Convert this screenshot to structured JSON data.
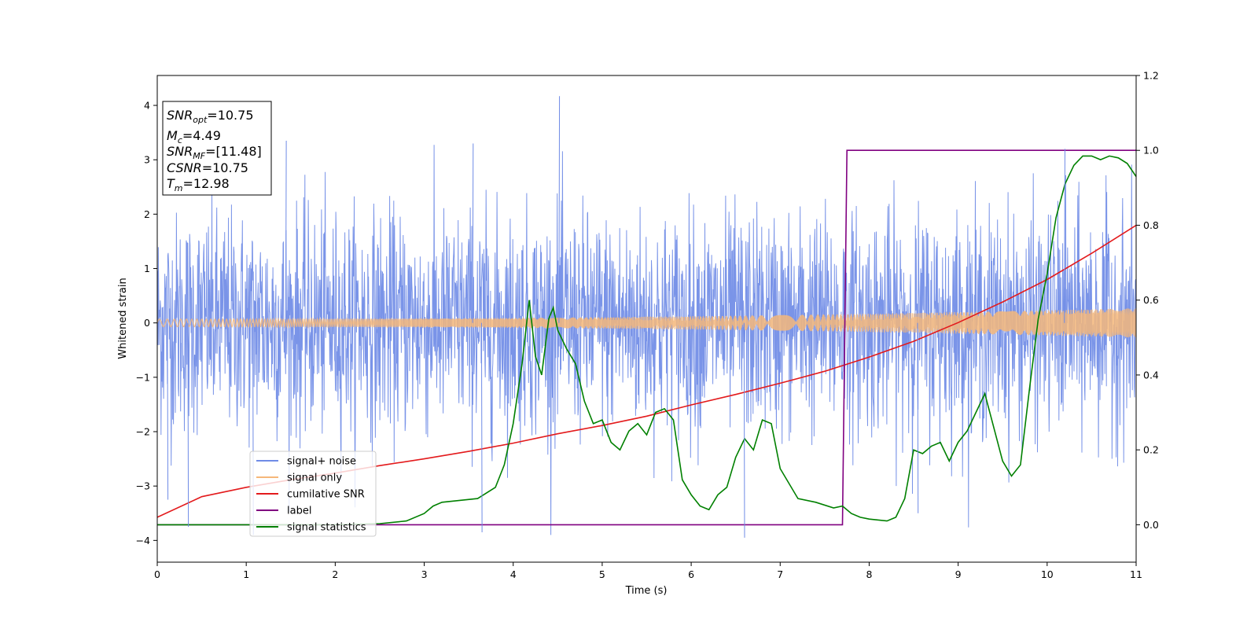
{
  "chart_data": {
    "type": "line",
    "title": "",
    "xlabel": "Time (s)",
    "ylabel": "Whitened strain",
    "y2label": "",
    "xlim": [
      0,
      11
    ],
    "ylim": [
      -4.4,
      4.55
    ],
    "y2lim": [
      -0.1,
      1.2
    ],
    "xticks": [
      0,
      1,
      2,
      3,
      4,
      5,
      6,
      7,
      8,
      9,
      10,
      11
    ],
    "yticks": [
      -4,
      -3,
      -2,
      -1,
      0,
      1,
      2,
      3,
      4
    ],
    "y2ticks": [
      0.0,
      0.2,
      0.4,
      0.6,
      0.8,
      1.0,
      1.2
    ],
    "grid": false,
    "legend_position": "lower-left",
    "info_box": [
      {
        "var": "SNR",
        "sub": "opt",
        "value": "=10.75"
      },
      {
        "var": "M",
        "sub": "c",
        "value": "=4.49"
      },
      {
        "var": "SNR",
        "sub": "MF",
        "value": "=[11.48]"
      },
      {
        "var": "CSNR",
        "sub": "",
        "value": "=10.75"
      },
      {
        "var": "T",
        "sub": "m",
        "value": "=12.98"
      }
    ],
    "series": [
      {
        "name": "signal+ noise",
        "axis": "left",
        "color": "#6f8be6",
        "kind": "noise-band",
        "noise_std": 1.0,
        "typical_range": [
          -2.5,
          2.5
        ],
        "peak_max": 4.17,
        "peak_min": -3.95
      },
      {
        "name": "signal only",
        "axis": "left",
        "color": "#f5b77a",
        "kind": "chirp",
        "amplitude_start": 0.07,
        "amplitude_end": 0.27
      },
      {
        "name": "cumilative SNR",
        "axis": "right",
        "color": "#e31a1c",
        "x": [
          0,
          0.5,
          1,
          1.5,
          2,
          2.5,
          3,
          3.5,
          4,
          4.5,
          5,
          5.5,
          6,
          6.5,
          7,
          7.5,
          8,
          8.5,
          9,
          9.5,
          10,
          10.5,
          11
        ],
        "y": [
          0.02,
          0.075,
          0.1,
          0.12,
          0.138,
          0.158,
          0.176,
          0.196,
          0.218,
          0.243,
          0.265,
          0.29,
          0.32,
          0.348,
          0.378,
          0.41,
          0.448,
          0.49,
          0.54,
          0.595,
          0.655,
          0.725,
          0.8
        ]
      },
      {
        "name": "label",
        "axis": "right",
        "color": "#800080",
        "x": [
          0,
          7.7,
          7.75,
          11
        ],
        "y": [
          0,
          0,
          1,
          1
        ]
      },
      {
        "name": "signal statistics",
        "axis": "right",
        "color": "#008000",
        "x": [
          0,
          1,
          2,
          2.5,
          2.8,
          3.0,
          3.1,
          3.2,
          3.4,
          3.6,
          3.8,
          3.9,
          4.0,
          4.1,
          4.18,
          4.25,
          4.32,
          4.4,
          4.45,
          4.5,
          4.6,
          4.7,
          4.8,
          4.9,
          5.0,
          5.1,
          5.2,
          5.3,
          5.4,
          5.5,
          5.6,
          5.7,
          5.8,
          5.9,
          6.0,
          6.1,
          6.2,
          6.3,
          6.4,
          6.5,
          6.6,
          6.7,
          6.8,
          6.9,
          7.0,
          7.2,
          7.4,
          7.6,
          7.7,
          7.8,
          7.9,
          8.0,
          8.2,
          8.3,
          8.4,
          8.5,
          8.6,
          8.7,
          8.8,
          8.9,
          9.0,
          9.1,
          9.2,
          9.3,
          9.4,
          9.5,
          9.6,
          9.7,
          9.8,
          9.9,
          10.0,
          10.1,
          10.2,
          10.3,
          10.4,
          10.5,
          10.6,
          10.7,
          10.8,
          10.9,
          11.0
        ],
        "y": [
          0.0,
          0.0,
          0.0,
          0.003,
          0.01,
          0.03,
          0.05,
          0.06,
          0.065,
          0.07,
          0.1,
          0.16,
          0.27,
          0.43,
          0.6,
          0.45,
          0.4,
          0.55,
          0.58,
          0.52,
          0.47,
          0.43,
          0.33,
          0.27,
          0.28,
          0.22,
          0.2,
          0.25,
          0.27,
          0.24,
          0.3,
          0.31,
          0.28,
          0.12,
          0.08,
          0.05,
          0.04,
          0.08,
          0.1,
          0.18,
          0.23,
          0.2,
          0.28,
          0.27,
          0.15,
          0.07,
          0.06,
          0.045,
          0.05,
          0.03,
          0.02,
          0.015,
          0.01,
          0.02,
          0.07,
          0.2,
          0.19,
          0.21,
          0.22,
          0.17,
          0.22,
          0.25,
          0.3,
          0.35,
          0.26,
          0.17,
          0.13,
          0.16,
          0.36,
          0.55,
          0.67,
          0.82,
          0.91,
          0.96,
          0.985,
          0.985,
          0.975,
          0.985,
          0.98,
          0.965,
          0.93
        ]
      }
    ]
  }
}
